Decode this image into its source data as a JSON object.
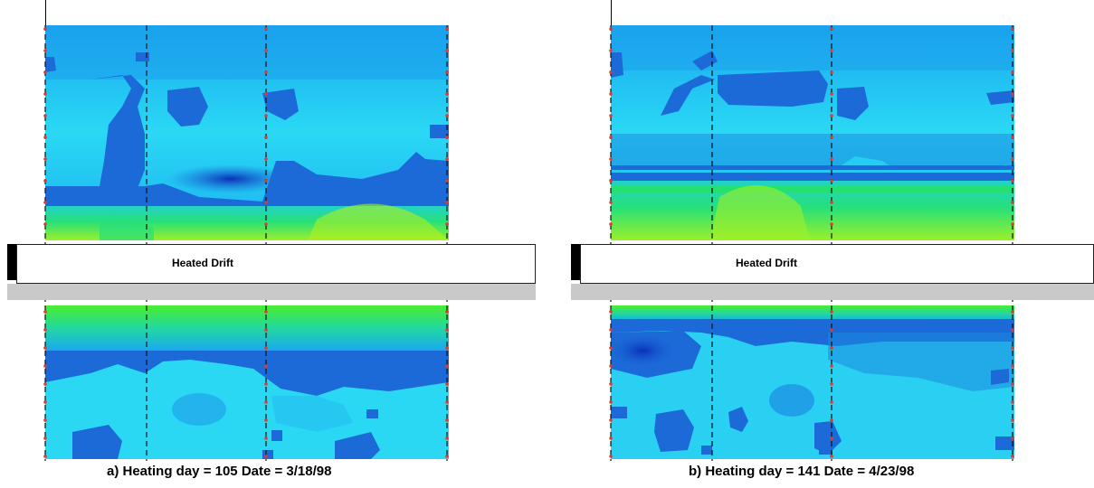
{
  "panels": [
    {
      "drift_label": "Heated Drift",
      "caption": "a) Heating day = 105 Date = 3/18/98"
    },
    {
      "drift_label": "Heated Drift",
      "caption": "b) Heating day = 141 Date = 4/23/98"
    }
  ],
  "colors": {
    "light_cyan": "#2ad4f2",
    "mid_blue": "#1f8fe6",
    "deep_blue": "#0a3fc8",
    "green": "#22e06a",
    "yellow_green": "#a8f020",
    "boundary_blue": "#1c6ad8",
    "marker_red": "#e23a2a"
  }
}
